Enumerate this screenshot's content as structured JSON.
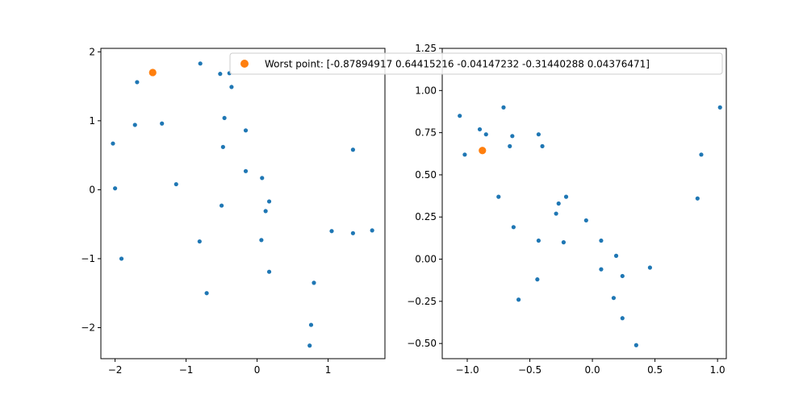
{
  "chart_data": [
    {
      "type": "scatter",
      "xlim": [
        -2.2,
        1.8
      ],
      "ylim": [
        -2.45,
        2.05
      ],
      "xticks": [
        -2,
        -1,
        0,
        1
      ],
      "yticks": [
        -2,
        -1,
        0,
        1,
        2
      ],
      "xtick_labels": [
        "−2",
        "−1",
        "0",
        "1"
      ],
      "ytick_labels": [
        "−2",
        "−1",
        "0",
        "1",
        "2"
      ],
      "legend": {
        "label": "Worst point: [-0.87894917  0.64415216 -0.04147232 -0.31440288  0.04376471]",
        "placement": "top-right"
      },
      "grid": false,
      "series": [
        {
          "color": "#1f77b4",
          "points": [
            {
              "x": -2.03,
              "y": 0.67
            },
            {
              "x": -2.0,
              "y": 0.02
            },
            {
              "x": -1.91,
              "y": -1.0
            },
            {
              "x": -1.72,
              "y": 0.94
            },
            {
              "x": -1.69,
              "y": 1.56
            },
            {
              "x": -1.34,
              "y": 0.96
            },
            {
              "x": -1.14,
              "y": 0.08
            },
            {
              "x": -0.8,
              "y": 1.83
            },
            {
              "x": -0.81,
              "y": -0.75
            },
            {
              "x": -0.71,
              "y": -1.5
            },
            {
              "x": -0.52,
              "y": 1.68
            },
            {
              "x": -0.5,
              "y": -0.23
            },
            {
              "x": -0.48,
              "y": 0.62
            },
            {
              "x": -0.46,
              "y": 1.04
            },
            {
              "x": -0.39,
              "y": 1.69
            },
            {
              "x": -0.36,
              "y": 1.49
            },
            {
              "x": -0.16,
              "y": 0.86
            },
            {
              "x": -0.16,
              "y": 0.27
            },
            {
              "x": 0.07,
              "y": 0.17
            },
            {
              "x": 0.06,
              "y": -0.73
            },
            {
              "x": 0.12,
              "y": -0.31
            },
            {
              "x": 0.17,
              "y": -0.17
            },
            {
              "x": 0.17,
              "y": -1.19
            },
            {
              "x": 0.74,
              "y": -2.26
            },
            {
              "x": 0.76,
              "y": -1.96
            },
            {
              "x": 0.8,
              "y": -1.35
            },
            {
              "x": 1.05,
              "y": -0.6
            },
            {
              "x": 1.35,
              "y": 0.58
            },
            {
              "x": 1.35,
              "y": -0.63
            },
            {
              "x": 1.62,
              "y": -0.59
            }
          ]
        },
        {
          "name": "Worst point: [-0.87894917  0.64415216 -0.04147232 -0.31440288  0.04376471]",
          "color": "#ff7f0e",
          "points": [
            {
              "x": -1.47,
              "y": 1.7
            }
          ]
        }
      ]
    },
    {
      "type": "scatter",
      "xlim": [
        -1.2,
        1.07
      ],
      "ylim": [
        -0.59,
        1.25
      ],
      "xticks": [
        -1.0,
        -0.5,
        0.0,
        0.5,
        1.0
      ],
      "yticks": [
        -0.5,
        -0.25,
        0.0,
        0.25,
        0.5,
        0.75,
        1.0,
        1.25
      ],
      "xtick_labels": [
        "−1.0",
        "−0.5",
        "0.0",
        "0.5",
        "1.0"
      ],
      "ytick_labels": [
        "−0.50",
        "−0.25",
        "0.00",
        "0.25",
        "0.50",
        "0.75",
        "1.00",
        "1.25"
      ],
      "grid": false,
      "series": [
        {
          "color": "#1f77b4",
          "points": [
            {
              "x": -1.06,
              "y": 0.85
            },
            {
              "x": -1.02,
              "y": 0.62
            },
            {
              "x": -0.9,
              "y": 0.77
            },
            {
              "x": -0.85,
              "y": 0.74
            },
            {
              "x": -0.75,
              "y": 0.37
            },
            {
              "x": -0.71,
              "y": 0.9
            },
            {
              "x": -0.66,
              "y": 0.67
            },
            {
              "x": -0.64,
              "y": 0.73
            },
            {
              "x": -0.63,
              "y": 0.19
            },
            {
              "x": -0.59,
              "y": -0.24
            },
            {
              "x": -0.43,
              "y": 0.74
            },
            {
              "x": -0.43,
              "y": 0.11
            },
            {
              "x": -0.44,
              "y": -0.12
            },
            {
              "x": -0.4,
              "y": 0.67
            },
            {
              "x": -0.29,
              "y": 0.27
            },
            {
              "x": -0.27,
              "y": 0.33
            },
            {
              "x": -0.23,
              "y": 0.1
            },
            {
              "x": -0.21,
              "y": 0.37
            },
            {
              "x": -0.05,
              "y": 0.23
            },
            {
              "x": 0.07,
              "y": 0.11
            },
            {
              "x": 0.07,
              "y": -0.06
            },
            {
              "x": 0.17,
              "y": -0.23
            },
            {
              "x": 0.19,
              "y": 0.02
            },
            {
              "x": 0.24,
              "y": -0.35
            },
            {
              "x": 0.24,
              "y": -0.1
            },
            {
              "x": 0.35,
              "y": -0.51
            },
            {
              "x": 0.46,
              "y": -0.05
            },
            {
              "x": 0.84,
              "y": 0.36
            },
            {
              "x": 0.87,
              "y": 0.62
            },
            {
              "x": 1.02,
              "y": 0.9
            }
          ]
        },
        {
          "color": "#ff7f0e",
          "points": [
            {
              "x": -0.87894917,
              "y": 0.64415216
            }
          ]
        }
      ]
    }
  ]
}
